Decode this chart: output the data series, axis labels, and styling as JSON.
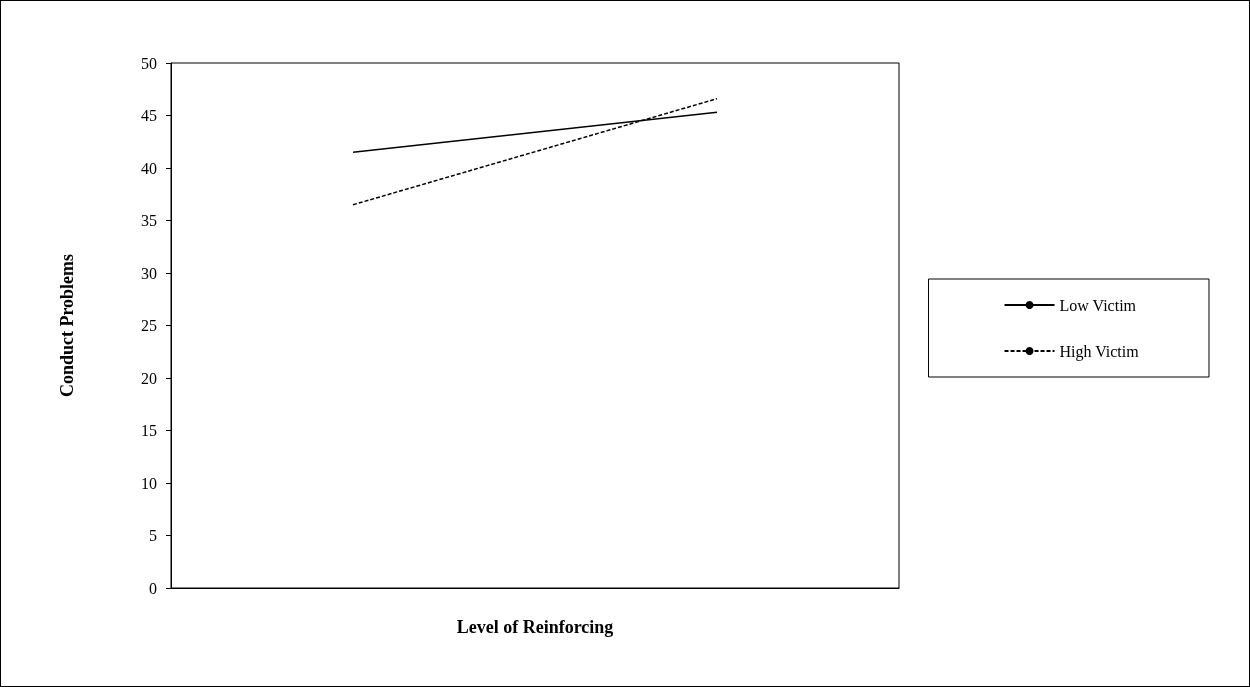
{
  "chart_data": {
    "type": "line",
    "xlabel": "Level of Reinforcing",
    "ylabel": "Conduct Problems",
    "categories": [
      null,
      null
    ],
    "series": [
      {
        "name": "Low Victim",
        "color": "#000000",
        "line_style": "solid",
        "values": [
          41.5,
          45.3
        ]
      },
      {
        "name": "High Victim",
        "color": "#000000",
        "line_style": "dashed",
        "values": [
          36.5,
          46.6
        ]
      }
    ],
    "ylim": [
      0,
      50
    ],
    "yticks": [
      0,
      5,
      10,
      15,
      20,
      25,
      30,
      35,
      40,
      45,
      50
    ],
    "grid": false,
    "legend": "right",
    "marker": "none"
  }
}
